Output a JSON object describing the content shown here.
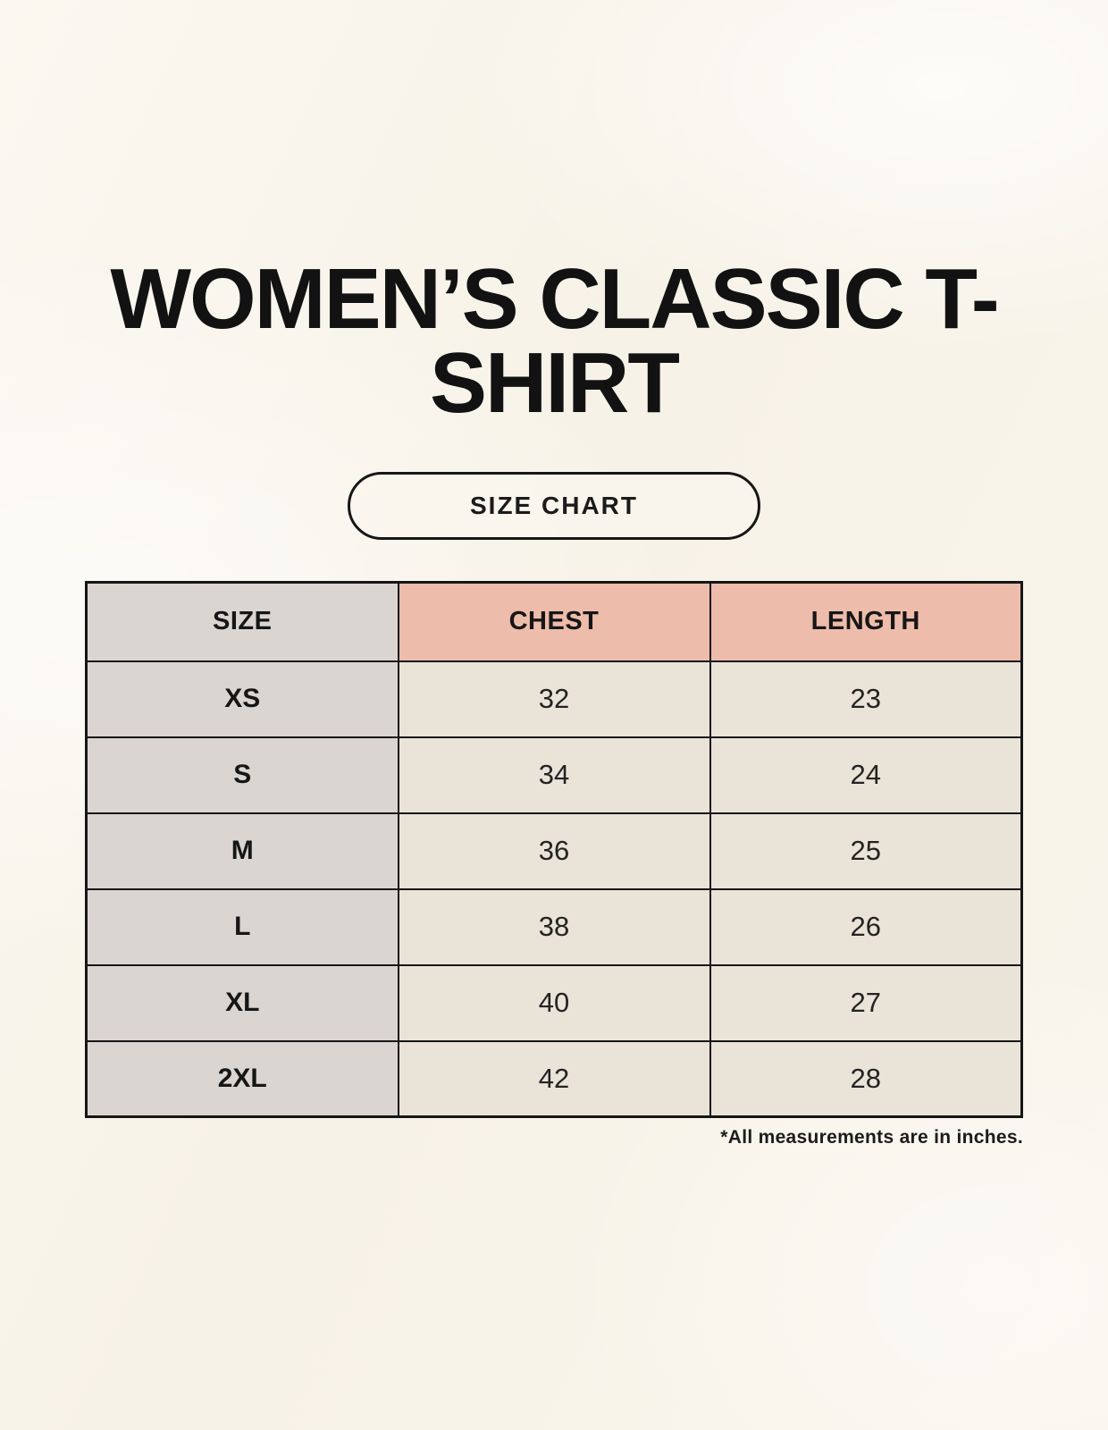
{
  "page": {
    "background_color": "#f9f5ec",
    "text_color": "#161616"
  },
  "badge": {
    "label": "SIZE CHART"
  },
  "chart_data": {
    "type": "table",
    "title": "WOMEN’S CLASSIC T-SHIRT",
    "columns": [
      "SIZE",
      "CHEST",
      "LENGTH"
    ],
    "rows": [
      [
        "XS",
        "32",
        "23"
      ],
      [
        "S",
        "34",
        "24"
      ],
      [
        "M",
        "36",
        "25"
      ],
      [
        "L",
        "38",
        "26"
      ],
      [
        "XL",
        "40",
        "27"
      ],
      [
        "2XL",
        "42",
        "28"
      ]
    ],
    "sizes": [
      "XS",
      "S",
      "M",
      "L",
      "XL",
      "2XL"
    ],
    "chest_values_in": [
      32,
      34,
      36,
      38,
      40,
      42
    ],
    "length_values_in": [
      23,
      24,
      25,
      26,
      27,
      28
    ],
    "units": "inches",
    "note": "*All measurements are in inches.",
    "styles": {
      "header_size_bg": "#dbd5d1",
      "header_measurement_bg": "#eebcaa",
      "row_label_bg": "#dbd5d1",
      "value_cell_bg": "#eae3d8",
      "border_color": "#161616"
    }
  }
}
